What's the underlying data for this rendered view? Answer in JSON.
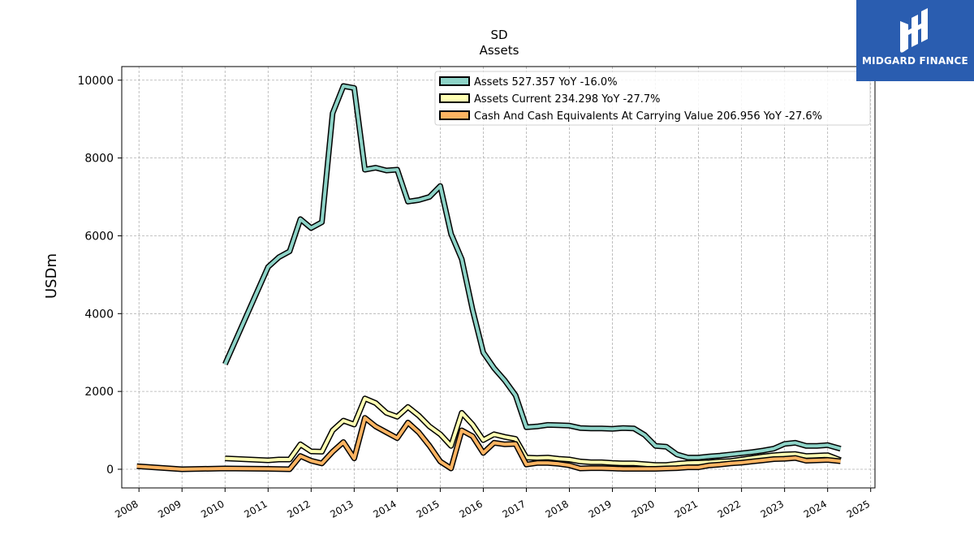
{
  "brand": {
    "name": "MIDGARD FINANCE",
    "bg_color": "#2a5db0"
  },
  "chart_data": {
    "type": "line",
    "title": "SD",
    "subtitle": "Assets",
    "xlabel": "",
    "ylabel": "USDm",
    "xlim": [
      2007.6,
      2025.1
    ],
    "ylim": [
      -480,
      10350
    ],
    "x_ticks": [
      "2008",
      "2009",
      "2010",
      "2011",
      "2012",
      "2013",
      "2014",
      "2015",
      "2016",
      "2017",
      "2018",
      "2019",
      "2020",
      "2021",
      "2022",
      "2023",
      "2024",
      "2025"
    ],
    "y_ticks": [
      0,
      2000,
      4000,
      6000,
      8000,
      10000
    ],
    "y_tick_labels": [
      "0",
      "2000",
      "4000",
      "6000",
      "8000",
      "10000"
    ],
    "grid": true,
    "legend_position": "top-right",
    "series": [
      {
        "name": "Assets  527.357 YoY -16.0%",
        "color": "#8dd3c7",
        "points": [
          [
            2010.0,
            2700
          ],
          [
            2011.0,
            5200
          ],
          [
            2011.25,
            5450
          ],
          [
            2011.5,
            5600
          ],
          [
            2011.75,
            6430
          ],
          [
            2012.0,
            6200
          ],
          [
            2012.25,
            6350
          ],
          [
            2012.5,
            9150
          ],
          [
            2012.75,
            9850
          ],
          [
            2013.0,
            9800
          ],
          [
            2013.25,
            7700
          ],
          [
            2013.5,
            7750
          ],
          [
            2013.75,
            7680
          ],
          [
            2014.0,
            7700
          ],
          [
            2014.25,
            6880
          ],
          [
            2014.5,
            6920
          ],
          [
            2014.75,
            7000
          ],
          [
            2015.0,
            7280
          ],
          [
            2015.25,
            6050
          ],
          [
            2015.5,
            5400
          ],
          [
            2015.75,
            4100
          ],
          [
            2016.0,
            3000
          ],
          [
            2016.25,
            2600
          ],
          [
            2016.5,
            2280
          ],
          [
            2016.75,
            1900
          ],
          [
            2017.0,
            1080
          ],
          [
            2017.25,
            1100
          ],
          [
            2017.5,
            1140
          ],
          [
            2017.75,
            1130
          ],
          [
            2018.0,
            1120
          ],
          [
            2018.25,
            1060
          ],
          [
            2018.5,
            1050
          ],
          [
            2018.75,
            1050
          ],
          [
            2019.0,
            1040
          ],
          [
            2019.25,
            1060
          ],
          [
            2019.5,
            1050
          ],
          [
            2019.75,
            880
          ],
          [
            2020.0,
            600
          ],
          [
            2020.25,
            580
          ],
          [
            2020.5,
            380
          ],
          [
            2020.75,
            300
          ],
          [
            2021.0,
            300
          ],
          [
            2021.25,
            330
          ],
          [
            2021.5,
            350
          ],
          [
            2021.75,
            380
          ],
          [
            2022.0,
            410
          ],
          [
            2022.25,
            440
          ],
          [
            2022.5,
            480
          ],
          [
            2022.75,
            530
          ],
          [
            2023.0,
            650
          ],
          [
            2023.25,
            680
          ],
          [
            2023.5,
            600
          ],
          [
            2023.75,
            600
          ],
          [
            2024.0,
            620
          ],
          [
            2024.3,
            527
          ]
        ]
      },
      {
        "name": "Assets Current  234.298 YoY -27.7%",
        "color": "#ffffb3",
        "points": [
          [
            2010.0,
            280
          ],
          [
            2011.0,
            230
          ],
          [
            2011.25,
            250
          ],
          [
            2011.5,
            250
          ],
          [
            2011.75,
            640
          ],
          [
            2012.0,
            460
          ],
          [
            2012.25,
            450
          ],
          [
            2012.5,
            1000
          ],
          [
            2012.75,
            1250
          ],
          [
            2013.0,
            1150
          ],
          [
            2013.25,
            1820
          ],
          [
            2013.5,
            1700
          ],
          [
            2013.75,
            1450
          ],
          [
            2014.0,
            1350
          ],
          [
            2014.25,
            1600
          ],
          [
            2014.5,
            1380
          ],
          [
            2014.75,
            1100
          ],
          [
            2015.0,
            900
          ],
          [
            2015.25,
            600
          ],
          [
            2015.5,
            1450
          ],
          [
            2015.75,
            1150
          ],
          [
            2016.0,
            750
          ],
          [
            2016.25,
            900
          ],
          [
            2016.5,
            830
          ],
          [
            2016.75,
            780
          ],
          [
            2017.0,
            300
          ],
          [
            2017.25,
            290
          ],
          [
            2017.5,
            300
          ],
          [
            2017.75,
            270
          ],
          [
            2018.0,
            250
          ],
          [
            2018.25,
            200
          ],
          [
            2018.5,
            180
          ],
          [
            2018.75,
            180
          ],
          [
            2019.0,
            160
          ],
          [
            2019.25,
            150
          ],
          [
            2019.5,
            150
          ],
          [
            2019.75,
            130
          ],
          [
            2020.0,
            110
          ],
          [
            2020.25,
            110
          ],
          [
            2020.5,
            140
          ],
          [
            2020.75,
            160
          ],
          [
            2021.0,
            170
          ],
          [
            2021.25,
            180
          ],
          [
            2021.5,
            200
          ],
          [
            2021.75,
            210
          ],
          [
            2022.0,
            250
          ],
          [
            2022.25,
            290
          ],
          [
            2022.5,
            330
          ],
          [
            2022.75,
            360
          ],
          [
            2023.0,
            380
          ],
          [
            2023.25,
            390
          ],
          [
            2023.5,
            340
          ],
          [
            2023.75,
            350
          ],
          [
            2024.0,
            360
          ],
          [
            2024.3,
            234
          ]
        ]
      },
      {
        "name": "Cash And Cash Equivalents At Carrying Value  206.956 YoY -27.6%",
        "color": "#fdb462",
        "points": [
          [
            2007.95,
            80
          ],
          [
            2009.0,
            0
          ],
          [
            2010.0,
            20
          ],
          [
            2011.0,
            10
          ],
          [
            2011.25,
            5
          ],
          [
            2011.5,
            0
          ],
          [
            2011.75,
            340
          ],
          [
            2012.0,
            220
          ],
          [
            2012.25,
            150
          ],
          [
            2012.5,
            450
          ],
          [
            2012.75,
            700
          ],
          [
            2013.0,
            280
          ],
          [
            2013.25,
            1320
          ],
          [
            2013.5,
            1100
          ],
          [
            2013.75,
            950
          ],
          [
            2014.0,
            800
          ],
          [
            2014.25,
            1200
          ],
          [
            2014.5,
            950
          ],
          [
            2014.75,
            600
          ],
          [
            2015.0,
            200
          ],
          [
            2015.25,
            20
          ],
          [
            2015.5,
            1000
          ],
          [
            2015.75,
            850
          ],
          [
            2016.0,
            420
          ],
          [
            2016.25,
            680
          ],
          [
            2016.5,
            640
          ],
          [
            2016.75,
            650
          ],
          [
            2017.0,
            120
          ],
          [
            2017.25,
            160
          ],
          [
            2017.5,
            160
          ],
          [
            2017.75,
            140
          ],
          [
            2018.0,
            100
          ],
          [
            2018.25,
            20
          ],
          [
            2018.5,
            30
          ],
          [
            2018.75,
            30
          ],
          [
            2019.0,
            20
          ],
          [
            2019.25,
            10
          ],
          [
            2019.5,
            10
          ],
          [
            2019.75,
            10
          ],
          [
            2020.0,
            10
          ],
          [
            2020.25,
            20
          ],
          [
            2020.5,
            30
          ],
          [
            2020.75,
            50
          ],
          [
            2021.0,
            50
          ],
          [
            2021.25,
            100
          ],
          [
            2021.5,
            120
          ],
          [
            2021.75,
            150
          ],
          [
            2022.0,
            170
          ],
          [
            2022.25,
            200
          ],
          [
            2022.5,
            230
          ],
          [
            2022.75,
            260
          ],
          [
            2023.0,
            270
          ],
          [
            2023.25,
            290
          ],
          [
            2023.5,
            220
          ],
          [
            2023.75,
            230
          ],
          [
            2024.0,
            240
          ],
          [
            2024.3,
            207
          ]
        ]
      }
    ]
  }
}
